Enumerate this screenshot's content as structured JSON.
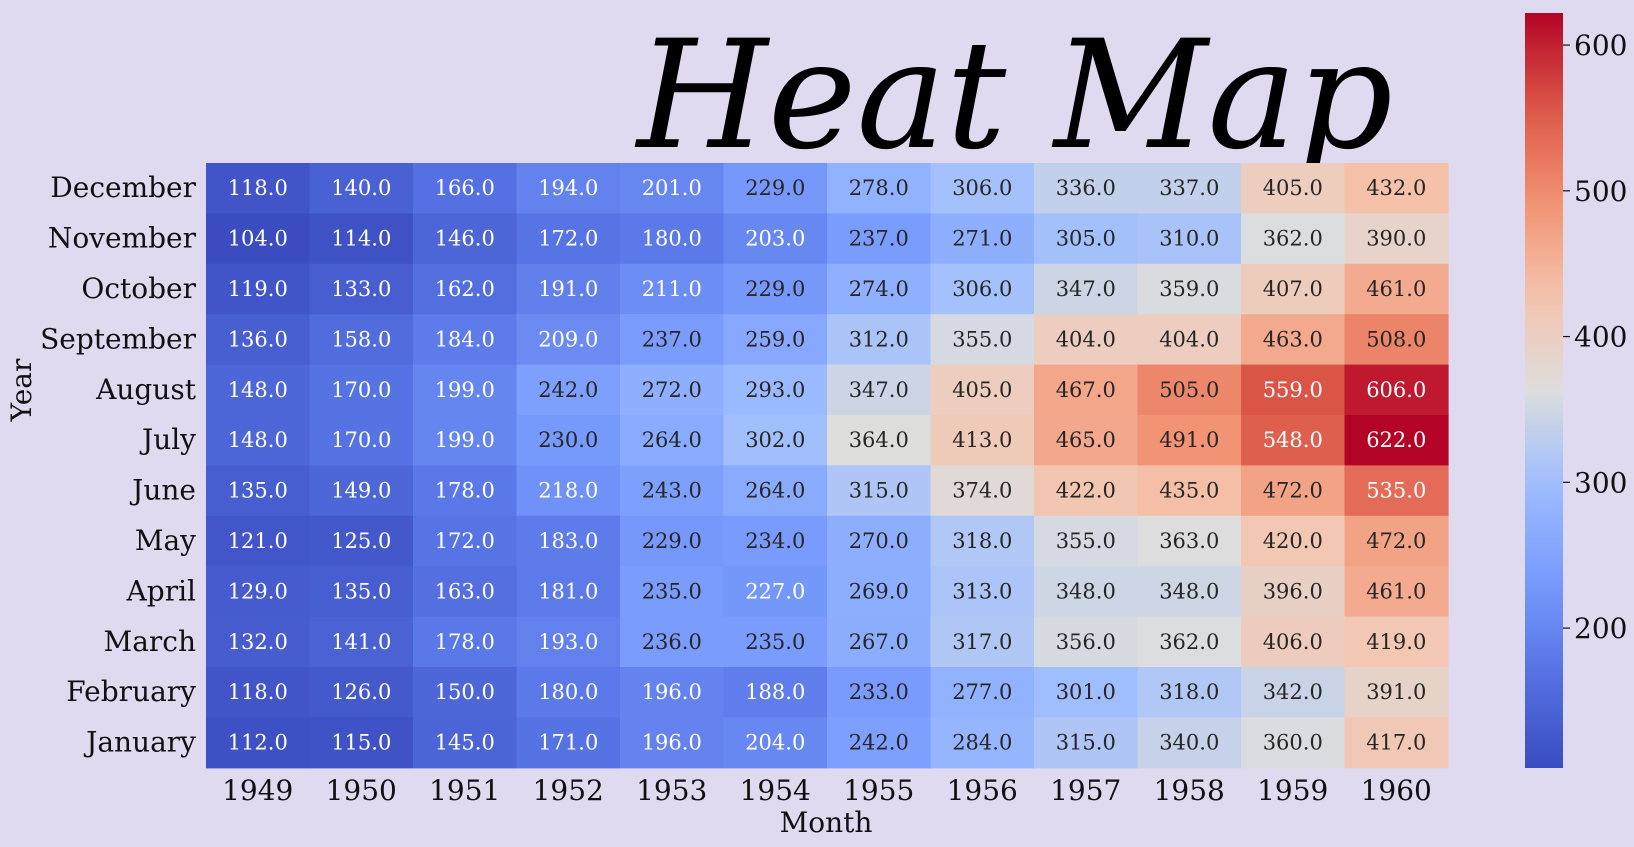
{
  "chart_data": {
    "type": "heatmap",
    "title": "Heat Map",
    "xlabel": "Month",
    "ylabel": "Year",
    "x_categories": [
      "1949",
      "1950",
      "1951",
      "1952",
      "1953",
      "1954",
      "1955",
      "1956",
      "1957",
      "1958",
      "1959",
      "1960"
    ],
    "y_categories": [
      "December",
      "November",
      "October",
      "September",
      "August",
      "July",
      "June",
      "May",
      "April",
      "March",
      "February",
      "January"
    ],
    "values": [
      [
        118,
        140,
        166,
        194,
        201,
        229,
        278,
        306,
        336,
        337,
        405,
        432
      ],
      [
        104,
        114,
        146,
        172,
        180,
        203,
        237,
        271,
        305,
        310,
        362,
        390
      ],
      [
        119,
        133,
        162,
        191,
        211,
        229,
        274,
        306,
        347,
        359,
        407,
        461
      ],
      [
        136,
        158,
        184,
        209,
        237,
        259,
        312,
        355,
        404,
        404,
        463,
        508
      ],
      [
        148,
        170,
        199,
        242,
        272,
        293,
        347,
        405,
        467,
        505,
        559,
        606
      ],
      [
        148,
        170,
        199,
        230,
        264,
        302,
        364,
        413,
        465,
        491,
        548,
        622
      ],
      [
        135,
        149,
        178,
        218,
        243,
        264,
        315,
        374,
        422,
        435,
        472,
        535
      ],
      [
        121,
        125,
        172,
        183,
        229,
        234,
        270,
        318,
        355,
        363,
        420,
        472
      ],
      [
        129,
        135,
        163,
        181,
        235,
        227,
        269,
        313,
        348,
        348,
        396,
        461
      ],
      [
        132,
        141,
        178,
        193,
        236,
        235,
        267,
        317,
        356,
        362,
        406,
        419
      ],
      [
        118,
        126,
        150,
        180,
        196,
        188,
        233,
        277,
        301,
        318,
        342,
        391
      ],
      [
        112,
        115,
        145,
        171,
        196,
        204,
        242,
        284,
        315,
        340,
        360,
        417
      ]
    ],
    "value_format": "0.0",
    "colormap": "coolwarm",
    "vmin": 104,
    "vmax": 622,
    "colorbar_ticks": [
      200,
      300,
      400,
      500,
      600
    ],
    "colors": {
      "background": "#e0daf0",
      "low": "#3b4cc0",
      "mid": "#dddddd",
      "high": "#b40426"
    }
  }
}
